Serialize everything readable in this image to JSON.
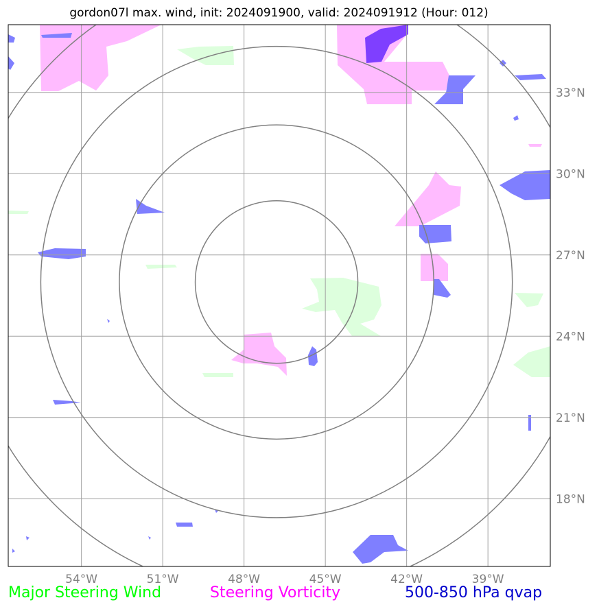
{
  "title": "gordon07l max. wind, init: 2024091900, valid: 2024091912 (Hour: 012)",
  "colors": {
    "grid": "#a0a0a0",
    "ring": "#808080",
    "tick_text": "#808080",
    "steering_wind": "#00ff00",
    "steering_wind_fill": "#ddffdd",
    "steering_vorticity": "#ff00ff",
    "steering_vorticity_fill": "#ffbbff",
    "qvap": "#0000cc",
    "qvap_fill": "#7f7fff",
    "qvap_fill_dark": "#7f3fff"
  },
  "map": {
    "lon_range": [
      -56.7,
      -36.7
    ],
    "lat_range": [
      15.5,
      35.5
    ],
    "grid_lons": [
      -54,
      -51,
      -48,
      -45,
      -42,
      -39
    ],
    "grid_lats": [
      18,
      21,
      24,
      27,
      30,
      33
    ],
    "lon_labels": [
      "54°W",
      "51°W",
      "48°W",
      "45°W",
      "42°W",
      "39°W"
    ],
    "lat_labels": [
      "18°N",
      "21°N",
      "24°N",
      "27°N",
      "30°N",
      "33°N"
    ],
    "center": [
      -46.8,
      26.0
    ],
    "rings_deg": [
      3.0,
      5.8,
      8.7,
      11.6
    ]
  },
  "legend": {
    "wind": "Major Steering Wind",
    "vorticity": "Steering Vorticity",
    "qvap": "500-850 hPa qvap"
  }
}
